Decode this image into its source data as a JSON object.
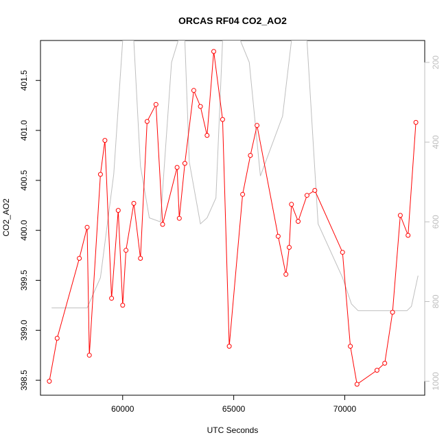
{
  "chart_data": {
    "type": "line",
    "title": "ORCAS RF04 CO2_AO2",
    "xlabel": "UTC Seconds",
    "ylabel": "CO2_AO2",
    "xlim": [
      56300,
      73600
    ],
    "ylim": [
      398.35,
      401.9
    ],
    "x_ticks": [
      "60000",
      "65000",
      "70000"
    ],
    "x_tick_values": [
      60000,
      65000,
      70000
    ],
    "y_ticks": [
      "398.5",
      "399.0",
      "399.5",
      "400.0",
      "400.5",
      "401.0",
      "401.5"
    ],
    "y_tick_values": [
      398.5,
      399.0,
      399.5,
      400.0,
      400.5,
      401.0,
      401.5
    ],
    "y2_ticks": [
      "200",
      "400",
      "600",
      "800",
      "1000"
    ],
    "y2_tick_values": [
      200,
      400,
      600,
      800,
      1000
    ],
    "y2lim": [
      1035,
      145
    ],
    "grid": false,
    "colors": {
      "co2": "#ff0000",
      "pressure": "#bebebe"
    },
    "series": [
      {
        "values": [
          [
            56700,
            398.49
          ],
          [
            57050,
            398.92
          ],
          [
            58050,
            399.72
          ],
          [
            58400,
            400.03
          ],
          [
            58500,
            398.75
          ],
          [
            59000,
            400.56
          ],
          [
            59200,
            400.9
          ],
          [
            59500,
            399.32
          ],
          [
            59800,
            400.2
          ],
          [
            60000,
            399.25
          ],
          [
            60150,
            399.8
          ],
          [
            60500,
            400.27
          ],
          [
            60800,
            399.72
          ],
          [
            61100,
            401.09
          ],
          [
            61500,
            401.26
          ],
          [
            61800,
            400.06
          ],
          [
            62450,
            400.63
          ],
          [
            62550,
            400.12
          ],
          [
            62800,
            400.67
          ],
          [
            63200,
            401.4
          ],
          [
            63500,
            401.24
          ],
          [
            63800,
            400.95
          ],
          [
            64100,
            401.79
          ],
          [
            64500,
            401.11
          ],
          [
            64800,
            398.84
          ],
          [
            65400,
            400.36
          ],
          [
            65750,
            400.75
          ],
          [
            66050,
            401.05
          ],
          [
            67000,
            399.94
          ],
          [
            67350,
            399.56
          ],
          [
            67500,
            399.83
          ],
          [
            67600,
            400.26
          ],
          [
            67900,
            400.09
          ],
          [
            68300,
            400.35
          ],
          [
            68650,
            400.4
          ],
          [
            69900,
            399.78
          ],
          [
            70250,
            398.84
          ],
          [
            70550,
            398.46
          ],
          [
            71450,
            398.6
          ],
          [
            71800,
            398.67
          ],
          [
            72150,
            399.18
          ],
          [
            72500,
            400.15
          ],
          [
            72850,
            399.95
          ],
          [
            73200,
            401.08
          ]
        ]
      },
      {
        "values": [
          [
            56800,
            816
          ],
          [
            58400,
            816
          ],
          [
            59000,
            740
          ],
          [
            59600,
            480
          ],
          [
            60000,
            145
          ],
          [
            60500,
            145
          ],
          [
            60800,
            460
          ],
          [
            61200,
            590
          ],
          [
            61700,
            600
          ],
          [
            62200,
            200
          ],
          [
            62500,
            145
          ],
          [
            62800,
            145
          ],
          [
            63000,
            450
          ],
          [
            63500,
            605
          ],
          [
            63800,
            590
          ],
          [
            64200,
            540
          ],
          [
            64500,
            145
          ],
          [
            65300,
            145
          ],
          [
            65700,
            200
          ],
          [
            66200,
            485
          ],
          [
            67200,
            335
          ],
          [
            67600,
            145
          ],
          [
            68300,
            145
          ],
          [
            68800,
            605
          ],
          [
            69900,
            740
          ],
          [
            70300,
            806
          ],
          [
            70600,
            823
          ],
          [
            72300,
            823
          ],
          [
            72800,
            823
          ],
          [
            73000,
            812
          ],
          [
            73300,
            735
          ]
        ]
      }
    ]
  }
}
